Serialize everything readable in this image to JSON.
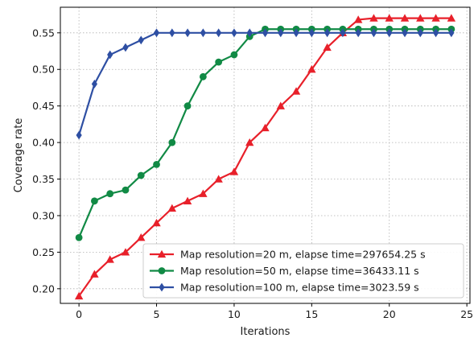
{
  "chart_data": {
    "type": "line",
    "title": "",
    "xlabel": "Iterations",
    "ylabel": "Coverage rate",
    "xlim": [
      -1.2,
      25.2
    ],
    "ylim": [
      0.18,
      0.585
    ],
    "xticks": [
      0,
      5,
      10,
      15,
      20,
      25
    ],
    "yticks": [
      0.2,
      0.25,
      0.3,
      0.35,
      0.4,
      0.45,
      0.5,
      0.55
    ],
    "grid": true,
    "legend_position": "lower-right",
    "x": [
      0,
      1,
      2,
      3,
      4,
      5,
      6,
      7,
      8,
      9,
      10,
      11,
      12,
      13,
      14,
      15,
      16,
      17,
      18,
      19,
      20,
      21,
      22,
      23,
      24
    ],
    "series": [
      {
        "name": "Map resolution=20 m, elapse time=297654.25 s",
        "color": "#e8202a",
        "marker": "triangle",
        "values": [
          0.19,
          0.22,
          0.24,
          0.25,
          0.27,
          0.29,
          0.31,
          0.32,
          0.33,
          0.35,
          0.36,
          0.4,
          0.42,
          0.45,
          0.47,
          0.5,
          0.53,
          0.55,
          0.568,
          0.57,
          0.57,
          0.57,
          0.57,
          0.57,
          0.57
        ]
      },
      {
        "name": "Map resolution=50 m, elapse time=36433.11 s",
        "color": "#118a45",
        "marker": "circle",
        "values": [
          0.27,
          0.32,
          0.33,
          0.335,
          0.355,
          0.37,
          0.4,
          0.45,
          0.49,
          0.51,
          0.52,
          0.545,
          0.555,
          0.555,
          0.555,
          0.555,
          0.555,
          0.555,
          0.555,
          0.555,
          0.555,
          0.555,
          0.555,
          0.555,
          0.555
        ]
      },
      {
        "name": "Map resolution=100 m, elapse time=3023.59 s",
        "color": "#2e4fa3",
        "marker": "diamond",
        "values": [
          0.41,
          0.48,
          0.52,
          0.53,
          0.54,
          0.55,
          0.55,
          0.55,
          0.55,
          0.55,
          0.55,
          0.55,
          0.55,
          0.55,
          0.55,
          0.55,
          0.55,
          0.55,
          0.55,
          0.55,
          0.55,
          0.55,
          0.55,
          0.55,
          0.55
        ]
      }
    ]
  }
}
